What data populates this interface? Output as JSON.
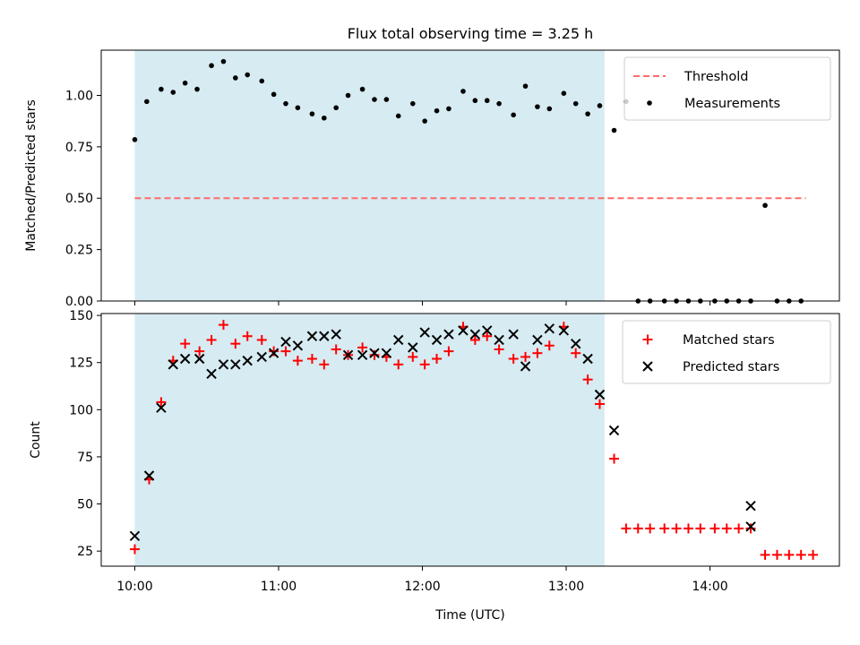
{
  "chart_data": [
    {
      "type": "scatter",
      "title": "Flux total observing time = 3.25 h",
      "xlabel": "",
      "ylabel": "Matched/Predicted stars",
      "ylim": [
        0,
        1.22
      ],
      "xlim": [
        "09:46",
        "14:54"
      ],
      "yticks": [
        "0.00",
        "0.25",
        "0.50",
        "0.75",
        "1.00"
      ],
      "shaded_interval": [
        "10:00",
        "13:16"
      ],
      "shade_color": "#add8e6",
      "legend_position": "top-right",
      "series": [
        {
          "name": "Threshold",
          "kind": "dashed-line",
          "color": "#ff6b6b",
          "x": [
            "10:00",
            "14:40"
          ],
          "y": [
            0.5,
            0.5
          ]
        },
        {
          "name": "Measurements",
          "kind": "dots",
          "color": "#000000",
          "x": [
            "10:00",
            "10:05",
            "10:11",
            "10:16",
            "10:21",
            "10:26",
            "10:32",
            "10:37",
            "10:42",
            "10:47",
            "10:53",
            "10:58",
            "11:03",
            "11:08",
            "11:14",
            "11:19",
            "11:24",
            "11:29",
            "11:35",
            "11:40",
            "11:45",
            "11:50",
            "11:56",
            "12:01",
            "12:06",
            "12:11",
            "12:17",
            "12:22",
            "12:27",
            "12:32",
            "12:38",
            "12:43",
            "12:48",
            "12:53",
            "12:59",
            "13:04",
            "13:09",
            "13:14",
            "13:20",
            "13:25",
            "13:30",
            "13:35",
            "13:41",
            "13:46",
            "13:51",
            "13:56",
            "14:02",
            "14:07",
            "14:12",
            "14:17",
            "14:23",
            "14:28",
            "14:33",
            "14:38"
          ],
          "y": [
            0.785,
            0.97,
            1.03,
            1.015,
            1.06,
            1.03,
            1.145,
            1.165,
            1.085,
            1.1,
            1.07,
            1.005,
            0.96,
            0.94,
            0.91,
            0.89,
            0.94,
            1.0,
            1.03,
            0.98,
            0.98,
            0.9,
            0.96,
            0.875,
            0.925,
            0.935,
            1.02,
            0.975,
            0.975,
            0.96,
            0.905,
            1.045,
            0.945,
            0.935,
            1.01,
            0.96,
            0.91,
            0.95,
            0.83,
            0.97,
            0.0,
            0.0,
            0.0,
            0.0,
            0.0,
            0.0,
            0.0,
            0.0,
            0.0,
            0.0,
            0.465,
            0.0,
            0.0,
            0.0
          ]
        }
      ]
    },
    {
      "type": "scatter",
      "title": "",
      "xlabel": "Time (UTC)",
      "ylabel": "Count",
      "ylim": [
        17,
        151
      ],
      "xlim": [
        "09:46",
        "14:54"
      ],
      "yticks": [
        "25",
        "50",
        "75",
        "100",
        "125",
        "150"
      ],
      "xticks": [
        "10:00",
        "11:00",
        "12:00",
        "13:00",
        "14:00"
      ],
      "shaded_interval": [
        "10:00",
        "13:16"
      ],
      "shade_color": "#add8e6",
      "legend_position": "top-right",
      "series": [
        {
          "name": "Matched stars",
          "marker": "+",
          "color": "#ff0000",
          "x": [
            "10:00",
            "10:06",
            "10:11",
            "10:16",
            "10:21",
            "10:27",
            "10:32",
            "10:37",
            "10:42",
            "10:47",
            "10:53",
            "10:58",
            "11:03",
            "11:08",
            "11:14",
            "11:19",
            "11:24",
            "11:29",
            "11:35",
            "11:40",
            "11:45",
            "11:50",
            "11:56",
            "12:01",
            "12:06",
            "12:11",
            "12:17",
            "12:22",
            "12:27",
            "12:32",
            "12:38",
            "12:43",
            "12:48",
            "12:53",
            "12:59",
            "13:04",
            "13:09",
            "13:14",
            "13:20",
            "13:25",
            "13:30",
            "13:35",
            "13:41",
            "13:46",
            "13:51",
            "13:56",
            "14:02",
            "14:07",
            "14:12",
            "14:17",
            "14:23",
            "14:28",
            "14:33",
            "14:38",
            "14:43"
          ],
          "y": [
            26,
            63,
            104,
            126,
            135,
            131,
            137,
            145,
            135,
            139,
            137,
            131,
            131,
            126,
            127,
            124,
            132,
            129,
            133,
            129,
            128,
            124,
            128,
            124,
            127,
            131,
            144,
            137,
            139,
            132,
            127,
            128,
            130,
            134,
            144,
            130,
            116,
            103,
            74,
            37,
            37,
            37,
            37,
            37,
            37,
            37,
            37,
            37,
            37,
            37,
            23,
            23,
            23,
            23,
            23
          ]
        },
        {
          "name": "Predicted stars",
          "marker": "x",
          "color": "#000000",
          "x": [
            "10:00",
            "10:06",
            "10:11",
            "10:16",
            "10:21",
            "10:27",
            "10:32",
            "10:37",
            "10:42",
            "10:47",
            "10:53",
            "10:58",
            "11:03",
            "11:08",
            "11:14",
            "11:19",
            "11:24",
            "11:29",
            "11:35",
            "11:40",
            "11:45",
            "11:50",
            "11:56",
            "12:01",
            "12:06",
            "12:11",
            "12:17",
            "12:22",
            "12:27",
            "12:32",
            "12:38",
            "12:43",
            "12:48",
            "12:53",
            "12:59",
            "13:04",
            "13:09",
            "13:14",
            "13:20",
            "14:17"
          ],
          "y": [
            33,
            65,
            101,
            124,
            127,
            127,
            119,
            124,
            124,
            126,
            128,
            130,
            136,
            134,
            139,
            139,
            140,
            129,
            129,
            130,
            130,
            137,
            133,
            141,
            137,
            140,
            142,
            140,
            142,
            137,
            140,
            123,
            137,
            143,
            142,
            135,
            127,
            108,
            89,
            38
          ]
        },
        {
          "name": "Predicted stars",
          "marker": "x",
          "color": "#000000",
          "x": [
            "14:17"
          ],
          "y": [
            49
          ]
        }
      ]
    }
  ]
}
